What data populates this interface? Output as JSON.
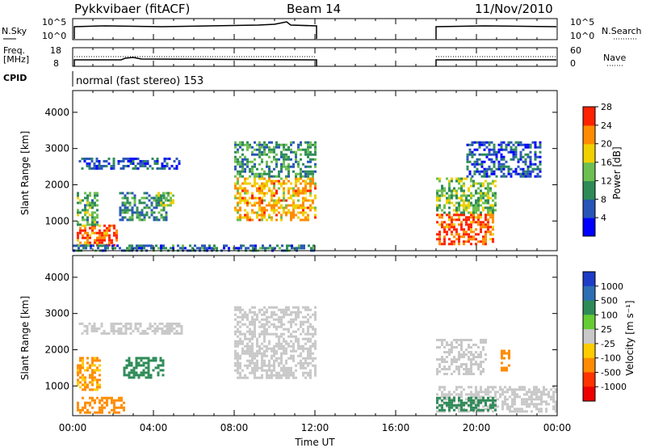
{
  "header": {
    "title": "Pykkvibaer (fitACF)",
    "beam": "Beam 14",
    "date": "11/Nov/2010"
  },
  "top_panels": {
    "nsky_label": "N.Sky",
    "nsky_ticks": [
      "10^5",
      "10^0"
    ],
    "nsearch_label": "N.Search",
    "nsearch_ticks": [
      "10^5",
      "10^0"
    ],
    "freq_label_1": "Freq.",
    "freq_label_2": "[MHz]",
    "freq_ticks": [
      "18",
      "8"
    ],
    "nave_label": "Nave",
    "nave_ticks": [
      "60",
      "0"
    ],
    "cpid_label": "CPID",
    "cpid_text": "normal (fast stereo) 153"
  },
  "chart_data": [
    {
      "type": "heatmap",
      "panel": "power",
      "ylabel": "Slant Range [km]",
      "yticks": [
        "1000",
        "2000",
        "3000",
        "4000"
      ],
      "ylim": [
        180,
        4600
      ],
      "xlim_hours": [
        0,
        24
      ],
      "data_gap_hours": [
        12,
        18
      ],
      "colorbar_label": "Power [dB]",
      "colorbar_ticks": [
        "4",
        "8",
        "12",
        "16",
        "20",
        "24",
        "28"
      ],
      "colorbar_colors": [
        "#0000ff",
        "#2855b8",
        "#2e8b57",
        "#6cbf50",
        "#f0d000",
        "#ff8c00",
        "#ff2200"
      ],
      "echo_bands": [
        {
          "start_h": 0.3,
          "end_h": 5.4,
          "range_km": [
            2450,
            2750
          ],
          "value": 6
        },
        {
          "start_h": 0.2,
          "end_h": 2.2,
          "range_km": [
            300,
            900
          ],
          "value": 24
        },
        {
          "start_h": 0.2,
          "end_h": 1.2,
          "range_km": [
            900,
            1800
          ],
          "value": 12
        },
        {
          "start_h": 2.3,
          "end_h": 4.6,
          "range_km": [
            1000,
            1800
          ],
          "value": 10
        },
        {
          "start_h": 4.2,
          "end_h": 5.0,
          "range_km": [
            1400,
            1800
          ],
          "value": 14
        },
        {
          "start_h": 8.0,
          "end_h": 12.0,
          "range_km": [
            1000,
            2200
          ],
          "value": 20
        },
        {
          "start_h": 8.0,
          "end_h": 12.0,
          "range_km": [
            2200,
            3200
          ],
          "value": 10
        },
        {
          "start_h": 0.0,
          "end_h": 12.0,
          "range_km": [
            180,
            350
          ],
          "value": 8
        },
        {
          "start_h": 18.0,
          "end_h": 20.8,
          "range_km": [
            350,
            1200
          ],
          "value": 24
        },
        {
          "start_h": 18.0,
          "end_h": 21.0,
          "range_km": [
            1200,
            2200
          ],
          "value": 14
        },
        {
          "start_h": 19.5,
          "end_h": 23.2,
          "range_km": [
            2200,
            3200
          ],
          "value": 6
        }
      ]
    },
    {
      "type": "heatmap",
      "panel": "velocity",
      "ylabel": "Slant Range [km]",
      "yticks": [
        "1000",
        "2000",
        "3000",
        "4000"
      ],
      "ylim": [
        180,
        4600
      ],
      "xlabel": "Time UT",
      "xticks": [
        "00:00",
        "04:00",
        "08:00",
        "12:00",
        "16:00",
        "20:00",
        "00:00"
      ],
      "xlim_hours": [
        0,
        24
      ],
      "data_gap_hours": [
        12,
        18
      ],
      "colorbar_label": "Velocity [m s⁻¹]",
      "colorbar_ticks": [
        "1000",
        "500",
        "100",
        "25",
        "-25",
        "-100",
        "-500",
        "-1000"
      ],
      "colorbar_colors": [
        "#1e3cc8",
        "#2e6eb4",
        "#2e8b57",
        "#66cc33",
        "#c8c8c8",
        "#ffcc00",
        "#ff8c00",
        "#ff3300",
        "#ee0000"
      ],
      "echo_bands": [
        {
          "start_h": 0.3,
          "end_h": 5.4,
          "range_km": [
            2450,
            2750
          ],
          "value": 0
        },
        {
          "start_h": 0.2,
          "end_h": 1.3,
          "range_km": [
            900,
            1800
          ],
          "value": -150
        },
        {
          "start_h": 0.2,
          "end_h": 2.5,
          "range_km": [
            250,
            700
          ],
          "value": -300
        },
        {
          "start_h": 2.5,
          "end_h": 4.5,
          "range_km": [
            1200,
            1800
          ],
          "value": 200
        },
        {
          "start_h": 8.0,
          "end_h": 12.0,
          "range_km": [
            1200,
            3200
          ],
          "value": 0
        },
        {
          "start_h": 18.0,
          "end_h": 24.0,
          "range_km": [
            300,
            1000
          ],
          "value": 0
        },
        {
          "start_h": 18.0,
          "end_h": 21.0,
          "range_km": [
            300,
            700
          ],
          "value": 300
        },
        {
          "start_h": 18.0,
          "end_h": 20.5,
          "range_km": [
            1300,
            2300
          ],
          "value": 0
        },
        {
          "start_h": 21.2,
          "end_h": 21.6,
          "range_km": [
            1400,
            2000
          ],
          "value": -300
        }
      ]
    }
  ]
}
